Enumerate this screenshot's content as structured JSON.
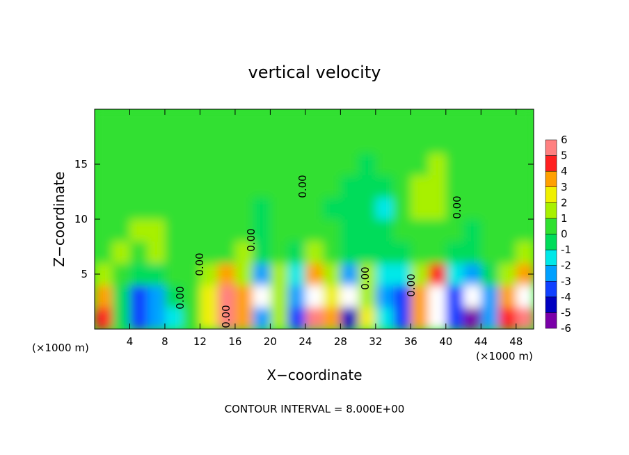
{
  "chart_data": {
    "type": "contourf",
    "title": "vertical velocity",
    "x_label": "X−coordinate",
    "y_label": "Z−coordinate",
    "x_unit_label": "(×1000 m)",
    "x_unit_label_right": "(×1000 m)",
    "annotation": "CONTOUR INTERVAL = 8.000E+00",
    "xlim": [
      0,
      50
    ],
    "ylim": [
      0,
      20
    ],
    "xticks": [
      4,
      8,
      12,
      16,
      20,
      24,
      28,
      32,
      36,
      40,
      44,
      48
    ],
    "yticks": [
      5,
      10,
      15
    ],
    "x": [
      1,
      3,
      5,
      7,
      9,
      11,
      13,
      15,
      17,
      19,
      21,
      23,
      25,
      27,
      29,
      31,
      33,
      35,
      37,
      39,
      41,
      43,
      45,
      47,
      49
    ],
    "y": [
      1,
      3,
      5,
      7,
      9,
      11,
      13,
      15,
      17,
      19
    ],
    "z": [
      [
        4,
        -1,
        -4,
        -3,
        -2,
        0,
        2,
        6,
        3,
        -3,
        1,
        -4,
        6,
        3,
        -5,
        2,
        -2,
        -4,
        3,
        7,
        -4,
        -6,
        -3,
        4,
        6
      ],
      [
        3,
        -1,
        -4,
        -3,
        -1,
        0,
        2,
        5,
        3,
        -7,
        1,
        -3,
        7,
        2,
        -7,
        1,
        -3,
        -4,
        3,
        8,
        -4,
        -7,
        -3,
        3,
        7
      ],
      [
        1,
        0,
        -1,
        -1,
        0,
        0,
        1,
        3,
        1,
        -3,
        1,
        -2,
        3,
        1,
        -3,
        1,
        -2,
        -2,
        1,
        4,
        -2,
        -3,
        -1,
        1,
        3
      ],
      [
        0,
        1,
        0,
        1,
        0,
        0,
        0,
        0,
        1,
        -1,
        0,
        -1,
        1,
        0,
        -1,
        -1,
        -1,
        -1,
        0,
        0,
        -1,
        -1,
        0,
        0,
        1
      ],
      [
        0,
        0,
        1,
        1,
        0,
        0,
        0,
        0,
        0,
        -1,
        0,
        0,
        0,
        0,
        -1,
        -1,
        -1,
        0,
        0,
        0,
        0,
        -1,
        0,
        0,
        0
      ],
      [
        0,
        0,
        0,
        0,
        0,
        0,
        0,
        0,
        0,
        -1,
        0,
        0,
        0,
        -1,
        -1,
        -1,
        -2,
        0,
        1,
        1,
        0,
        0,
        0,
        0,
        0
      ],
      [
        0,
        0,
        0,
        0,
        0,
        0,
        0,
        0,
        0,
        0,
        0,
        0,
        0,
        0,
        -1,
        -1,
        -1,
        0,
        1,
        1,
        0,
        0,
        0,
        0,
        0
      ],
      [
        0,
        0,
        0,
        0,
        0,
        0,
        0,
        0,
        0,
        0,
        0,
        0,
        0,
        0,
        0,
        -1,
        0,
        0,
        0,
        1,
        0,
        0,
        0,
        0,
        0
      ],
      [
        0,
        0,
        0,
        0,
        0,
        0,
        0,
        0,
        0,
        0,
        0,
        0,
        0,
        0,
        0,
        0,
        0,
        0,
        0,
        0,
        0,
        0,
        0,
        0,
        0
      ],
      [
        0,
        0,
        0,
        0,
        0,
        0,
        0,
        0,
        0,
        0,
        0,
        0,
        0,
        0,
        0,
        0,
        0,
        0,
        0,
        0,
        0,
        0,
        0,
        0,
        0
      ]
    ],
    "levels": [
      -6,
      -5,
      -4,
      -3,
      -2,
      -1,
      0,
      1,
      2,
      3,
      4,
      5,
      6
    ],
    "colors": [
      "#7a00a8",
      "#0000c0",
      "#1040ff",
      "#00a0ff",
      "#00e8e8",
      "#00dc5a",
      "#30e030",
      "#a8f000",
      "#f0f000",
      "#ffa000",
      "#ff2020",
      "#ff8080"
    ],
    "out_of_range_color": "#ffffff",
    "contour_labels": [
      "0.00",
      "0.00",
      "0.00",
      "0.00",
      "0.00",
      "0.00",
      "0.00",
      "0.00"
    ]
  }
}
